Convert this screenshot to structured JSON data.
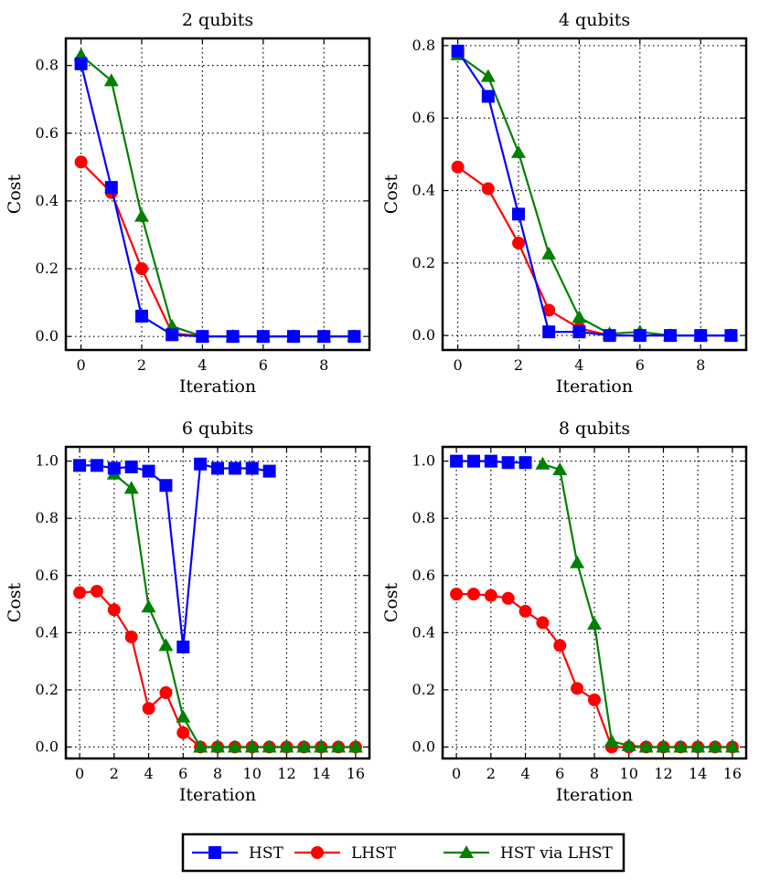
{
  "chart_data": [
    {
      "type": "line",
      "title": "2 qubits",
      "xlabel": "Iteration",
      "ylabel": "Cost",
      "xlim": [
        -0.5,
        9.5
      ],
      "ylim": [
        -0.04,
        0.88
      ],
      "xticks": [
        0,
        2,
        4,
        6,
        8
      ],
      "yticks": [
        0.0,
        0.2,
        0.4,
        0.6,
        0.8
      ],
      "grid": true,
      "series": [
        {
          "name": "LHST",
          "x": [
            0,
            1,
            2,
            3,
            4,
            5,
            6,
            7,
            8,
            9
          ],
          "values": [
            0.515,
            0.425,
            0.2,
            0.01,
            0.0,
            0.0,
            0.0,
            0.0,
            0.0,
            0.0
          ]
        },
        {
          "name": "HST via LHST",
          "x": [
            0,
            1,
            2,
            3,
            4,
            5,
            6,
            7,
            8,
            9
          ],
          "values": [
            0.83,
            0.755,
            0.355,
            0.03,
            0.0,
            0.0,
            0.0,
            0.0,
            0.0,
            0.0
          ]
        },
        {
          "name": "HST",
          "x": [
            0,
            1,
            2,
            3,
            4,
            5,
            6,
            7,
            8,
            9
          ],
          "values": [
            0.805,
            0.44,
            0.06,
            0.005,
            0.0,
            0.0,
            0.0,
            0.0,
            0.0,
            0.0
          ]
        }
      ]
    },
    {
      "type": "line",
      "title": "4 qubits",
      "xlabel": "Iteration",
      "ylabel": "Cost",
      "xlim": [
        -0.5,
        9.5
      ],
      "ylim": [
        -0.04,
        0.82
      ],
      "xticks": [
        0,
        2,
        4,
        6,
        8
      ],
      "yticks": [
        0.0,
        0.2,
        0.4,
        0.6,
        0.8
      ],
      "grid": true,
      "series": [
        {
          "name": "LHST",
          "x": [
            0,
            1,
            2,
            3,
            4,
            5,
            6,
            7,
            8,
            9
          ],
          "values": [
            0.465,
            0.405,
            0.255,
            0.07,
            0.02,
            0.0,
            0.0,
            0.0,
            0.0,
            0.0
          ]
        },
        {
          "name": "HST via LHST",
          "x": [
            0,
            1,
            2,
            3,
            4,
            5,
            6,
            7,
            8,
            9
          ],
          "values": [
            0.775,
            0.715,
            0.505,
            0.225,
            0.05,
            0.005,
            0.01,
            0.0,
            0.0,
            0.0
          ]
        },
        {
          "name": "HST",
          "x": [
            0,
            1,
            2,
            3,
            4,
            5,
            6,
            7,
            8,
            9
          ],
          "values": [
            0.785,
            0.66,
            0.335,
            0.01,
            0.01,
            0.0,
            0.0,
            0.0,
            0.0,
            0.0
          ]
        }
      ]
    },
    {
      "type": "line",
      "title": "6 qubits",
      "xlabel": "Iteration",
      "ylabel": "Cost",
      "xlim": [
        -0.8,
        16.8
      ],
      "ylim": [
        -0.04,
        1.05
      ],
      "xticks": [
        0,
        2,
        4,
        6,
        8,
        10,
        12,
        14,
        16
      ],
      "yticks": [
        0.0,
        0.2,
        0.4,
        0.6,
        0.8,
        1.0
      ],
      "grid": true,
      "series": [
        {
          "name": "LHST",
          "x": [
            0,
            1,
            2,
            3,
            4,
            5,
            6,
            7,
            8,
            9,
            10,
            11,
            12,
            13,
            14,
            15,
            16
          ],
          "values": [
            0.54,
            0.545,
            0.48,
            0.385,
            0.135,
            0.19,
            0.05,
            0.0,
            0.0,
            0.0,
            0.0,
            0.0,
            0.0,
            0.0,
            0.0,
            0.0,
            0.0
          ]
        },
        {
          "name": "HST via LHST",
          "x": [
            2,
            3,
            4,
            5,
            6,
            7,
            8,
            9,
            10,
            11,
            12,
            13,
            14,
            15,
            16
          ],
          "values": [
            0.955,
            0.905,
            0.49,
            0.355,
            0.105,
            0.0,
            0.0,
            0.0,
            0.0,
            0.0,
            0.0,
            0.0,
            0.0,
            0.0,
            0.0
          ]
        },
        {
          "name": "HST",
          "x": [
            0,
            1,
            2,
            3,
            4,
            5,
            6,
            7,
            8,
            9,
            10,
            11
          ],
          "values": [
            0.985,
            0.985,
            0.975,
            0.98,
            0.965,
            0.915,
            0.35,
            0.99,
            0.975,
            0.975,
            0.975,
            0.965
          ]
        }
      ]
    },
    {
      "type": "line",
      "title": "8 qubits",
      "xlabel": "Iteration",
      "ylabel": "Cost",
      "xlim": [
        -0.8,
        16.8
      ],
      "ylim": [
        -0.04,
        1.05
      ],
      "xticks": [
        0,
        2,
        4,
        6,
        8,
        10,
        12,
        14,
        16
      ],
      "yticks": [
        0.0,
        0.2,
        0.4,
        0.6,
        0.8,
        1.0
      ],
      "grid": true,
      "series": [
        {
          "name": "LHST",
          "x": [
            0,
            1,
            2,
            3,
            4,
            5,
            6,
            7,
            8,
            9,
            10,
            11,
            12,
            13,
            14,
            15,
            16
          ],
          "values": [
            0.535,
            0.535,
            0.53,
            0.52,
            0.475,
            0.435,
            0.355,
            0.205,
            0.165,
            0.0,
            0.0,
            0.0,
            0.0,
            0.0,
            0.0,
            0.0,
            0.0
          ]
        },
        {
          "name": "HST via LHST",
          "x": [
            5,
            6,
            7,
            8,
            9,
            10,
            11,
            12,
            13,
            14,
            15,
            16
          ],
          "values": [
            0.99,
            0.97,
            0.645,
            0.43,
            0.02,
            0.005,
            0.0,
            0.0,
            0.0,
            0.0,
            0.0,
            0.0
          ]
        },
        {
          "name": "HST",
          "x": [
            0,
            1,
            2,
            3,
            4
          ],
          "values": [
            1.0,
            1.0,
            1.0,
            0.995,
            0.995
          ]
        }
      ]
    }
  ],
  "legend": [
    {
      "name": "HST",
      "color": "#0000ff",
      "marker": "square"
    },
    {
      "name": "LHST",
      "color": "#ff0000",
      "marker": "circle"
    },
    {
      "name": "HST via LHST",
      "color": "#008000",
      "marker": "triangle"
    }
  ]
}
